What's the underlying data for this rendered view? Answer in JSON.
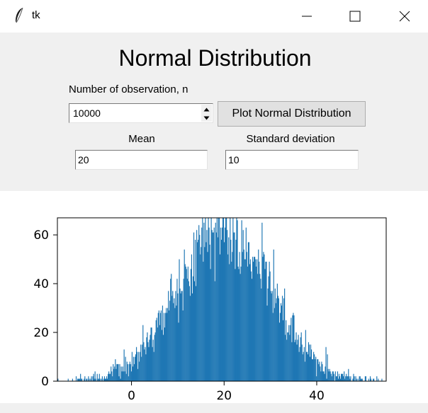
{
  "window": {
    "title": "tk",
    "icon": "feather-icon"
  },
  "controls": {
    "heading": "Normal Distribution",
    "n_label": "Number of observation, n",
    "n_value": "10000",
    "plot_button": "Plot Normal Distribution",
    "mean_label": "Mean",
    "mean_value": "20",
    "sd_label": "Standard deviation",
    "sd_value": "10"
  },
  "chart_data": {
    "type": "bar",
    "title": "",
    "xlabel": "",
    "ylabel": "",
    "xlim": [
      -16,
      55
    ],
    "ylim": [
      0,
      67
    ],
    "xticks": [
      0,
      20,
      40
    ],
    "yticks": [
      0,
      20,
      40,
      60
    ],
    "bar_color": "#1f77b4",
    "bins": 500,
    "distribution": {
      "name": "normal",
      "mean": 20,
      "sd": 10,
      "n": 10000
    },
    "grid": false
  }
}
